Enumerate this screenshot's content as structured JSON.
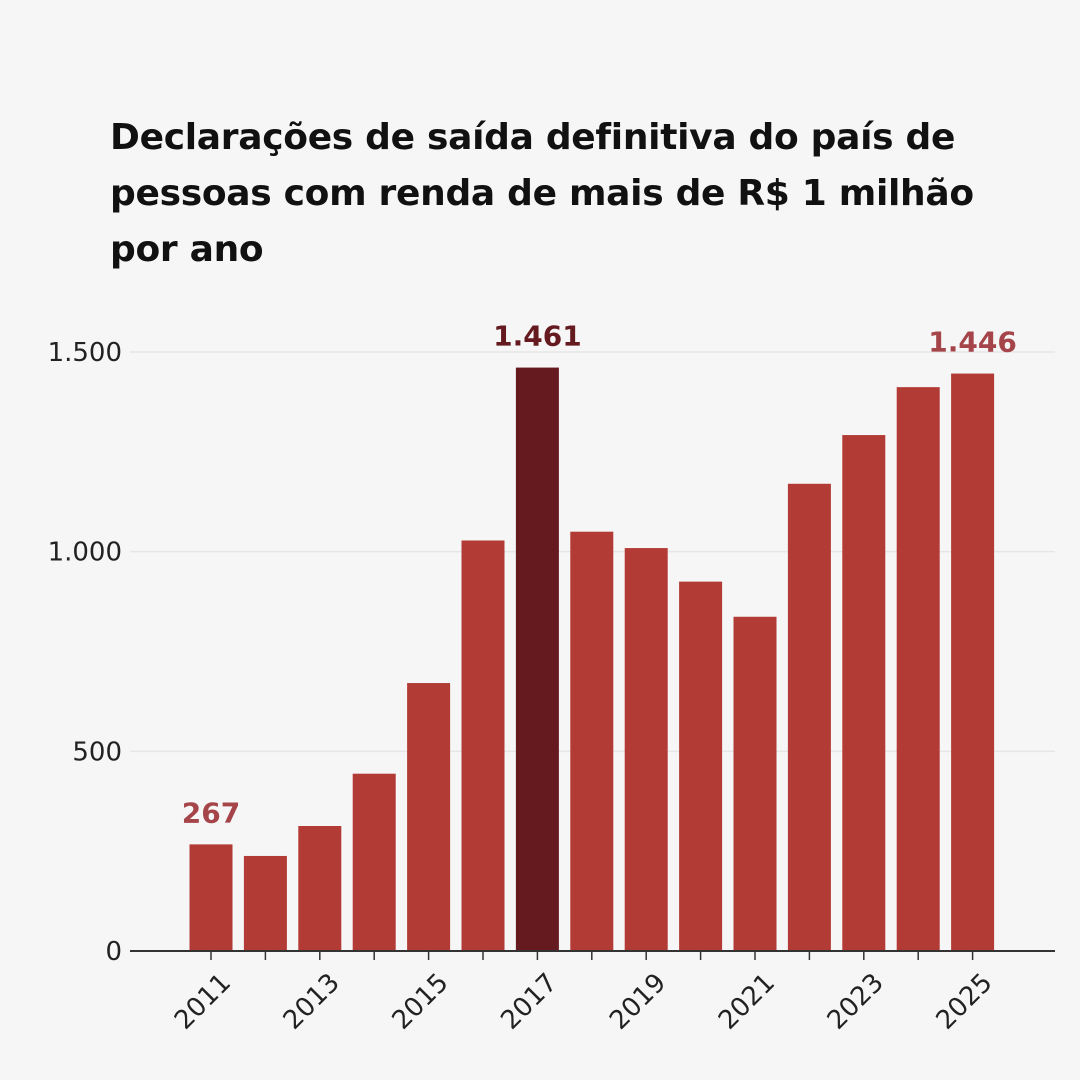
{
  "title": "Declarações de saída definitiva do país de pessoas com renda de mais de R$ 1 milhão por ano",
  "colors": {
    "bar": "#b33b35",
    "highlight": "#651a20",
    "label": "#a5454a",
    "highlight_label": "#651a20",
    "grid": "#e6e6e6",
    "axis": "#333333"
  },
  "chart_data": {
    "type": "bar",
    "title": "Declarações de saída definitiva do país de pessoas com renda de mais de R$ 1 milhão por ano",
    "xlabel": "",
    "ylabel": "",
    "categories": [
      "2011",
      "2012",
      "2013",
      "2014",
      "2015",
      "2016",
      "2017",
      "2018",
      "2019",
      "2020",
      "2021",
      "2022",
      "2023",
      "2024",
      "2025"
    ],
    "values": [
      267,
      238,
      313,
      444,
      671,
      1028,
      1461,
      1050,
      1009,
      925,
      837,
      1170,
      1292,
      1412,
      1446
    ],
    "highlight_category": "2017",
    "x_tick_labels": [
      "2011",
      "2013",
      "2015",
      "2017",
      "2019",
      "2021",
      "2023",
      "2025"
    ],
    "y_ticks": [
      0,
      500,
      1000,
      1500
    ],
    "y_tick_labels": [
      "0",
      "500",
      "1.000",
      "1.500"
    ],
    "ylim": [
      0,
      1500
    ],
    "grid": true,
    "legend": "none",
    "annotations": [
      {
        "category": "2011",
        "text": "267"
      },
      {
        "category": "2017",
        "text": "1.461"
      },
      {
        "category": "2025",
        "text": "1.446"
      }
    ]
  }
}
